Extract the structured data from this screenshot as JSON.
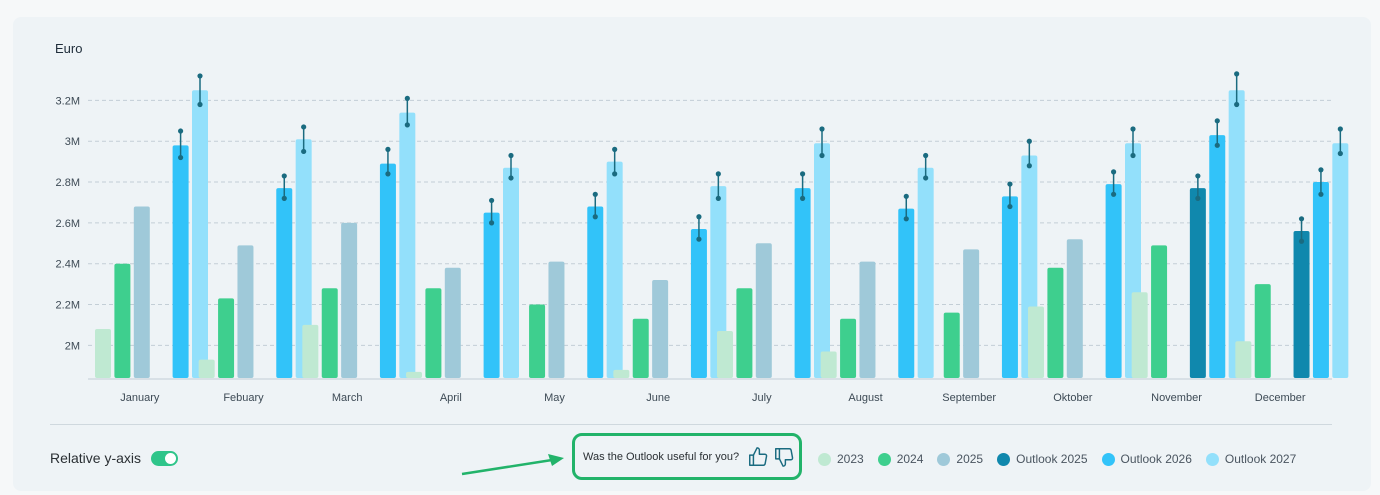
{
  "feedback": {
    "question": "Was the Outlook useful for you?"
  },
  "controls": {
    "relative_y_label": "Relative y-axis"
  },
  "colors": {
    "y2023": "#bfe9d2",
    "y2024": "#3ecf8e",
    "y2025": "#9fc9d9",
    "outlook2025": "#1088ad",
    "outlook2026": "#32c3f9",
    "outlook2027": "#93e0fb",
    "errorbar": "#1a6b80"
  },
  "chart_data": {
    "type": "bar",
    "title": "",
    "ylabel": "Euro",
    "xlabel": "",
    "ylim": [
      1840000,
      3300000
    ],
    "yticks": [
      {
        "value": 2000000,
        "label": "2M"
      },
      {
        "value": 2200000,
        "label": "2.2M"
      },
      {
        "value": 2400000,
        "label": "2.4M"
      },
      {
        "value": 2600000,
        "label": "2.6M"
      },
      {
        "value": 2800000,
        "label": "2.8M"
      },
      {
        "value": 3000000,
        "label": "3M"
      },
      {
        "value": 3200000,
        "label": "3.2M"
      }
    ],
    "grid": true,
    "legend_position": "bottom-right",
    "categories": [
      "January",
      "Febuary",
      "March",
      "April",
      "May",
      "June",
      "July",
      "August",
      "September",
      "Oktober",
      "November",
      "December"
    ],
    "series": [
      {
        "name": "2023",
        "color": "#bfe9d2",
        "values": [
          2080000,
          1930000,
          2100000,
          1870000,
          null,
          1880000,
          2070000,
          1970000,
          null,
          2190000,
          2260000,
          2020000
        ]
      },
      {
        "name": "2024",
        "color": "#3ecf8e",
        "values": [
          2400000,
          2230000,
          2280000,
          2280000,
          2200000,
          2130000,
          2280000,
          2130000,
          2160000,
          2380000,
          2490000,
          2300000
        ]
      },
      {
        "name": "2025",
        "color": "#9fc9d9",
        "values": [
          2680000,
          2490000,
          2600000,
          2380000,
          2410000,
          2320000,
          2500000,
          2410000,
          2470000,
          2520000,
          null,
          null
        ]
      },
      {
        "name": "Outlook 2025",
        "color": "#1088ad",
        "values": [
          null,
          null,
          null,
          null,
          null,
          null,
          null,
          null,
          null,
          null,
          2770000,
          2560000
        ],
        "error": [
          null,
          null,
          null,
          null,
          null,
          null,
          null,
          null,
          null,
          null,
          [
            2720000,
            2830000
          ],
          [
            2510000,
            2620000
          ]
        ]
      },
      {
        "name": "Outlook 2026",
        "color": "#32c3f9",
        "values": [
          2980000,
          2770000,
          2890000,
          2650000,
          2680000,
          2570000,
          2770000,
          2670000,
          2730000,
          2790000,
          3030000,
          2800000
        ],
        "error": [
          [
            2920000,
            3050000
          ],
          [
            2720000,
            2830000
          ],
          [
            2840000,
            2960000
          ],
          [
            2600000,
            2710000
          ],
          [
            2630000,
            2740000
          ],
          [
            2520000,
            2630000
          ],
          [
            2720000,
            2840000
          ],
          [
            2620000,
            2730000
          ],
          [
            2680000,
            2790000
          ],
          [
            2740000,
            2850000
          ],
          [
            2980000,
            3100000
          ],
          [
            2740000,
            2860000
          ]
        ]
      },
      {
        "name": "Outlook 2027",
        "color": "#93e0fb",
        "values": [
          3250000,
          3010000,
          3140000,
          2870000,
          2900000,
          2780000,
          2990000,
          2870000,
          2930000,
          2990000,
          3250000,
          2990000
        ],
        "error": [
          [
            3180000,
            3320000
          ],
          [
            2950000,
            3070000
          ],
          [
            3080000,
            3210000
          ],
          [
            2820000,
            2930000
          ],
          [
            2840000,
            2960000
          ],
          [
            2720000,
            2840000
          ],
          [
            2930000,
            3060000
          ],
          [
            2820000,
            2930000
          ],
          [
            2880000,
            3000000
          ],
          [
            2930000,
            3060000
          ],
          [
            3180000,
            3330000
          ],
          [
            2940000,
            3060000
          ]
        ]
      }
    ]
  }
}
